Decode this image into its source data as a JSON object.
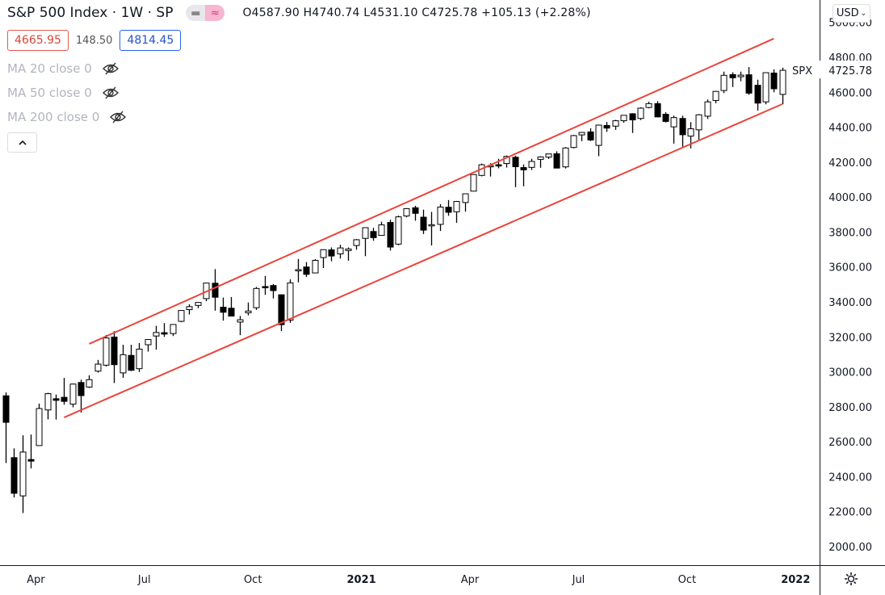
{
  "header": {
    "symbol_title": "S&P 500 Index · 1W · SP",
    "toggle_left_icon": "minus-icon",
    "toggle_right_icon": "approx-icon",
    "ohlc": "O4587.90 H4740.74 L4531.10 C4725.78 +105.13 (+2.28%)",
    "bid": "4665.95",
    "spread": "148.50",
    "ask": "4814.45"
  },
  "indicators": [
    {
      "label": "MA 20 close 0",
      "icon": "eye-off-icon"
    },
    {
      "label": "MA 50 close 0",
      "icon": "eye-off-icon"
    },
    {
      "label": "MA 200 close 0",
      "icon": "eye-off-icon"
    }
  ],
  "collapse_icon": "chevron-up-icon",
  "currency": "USD",
  "price_tag": {
    "symbol": "SPX",
    "value": "4725.78"
  },
  "colors": {
    "channel": "#e8453c",
    "up_fill": "#ffffff",
    "down_fill": "#000000",
    "outline": "#000000",
    "bid": "#d9453a",
    "ask": "#2453c7"
  },
  "chart_data": {
    "type": "candlestick",
    "interval": "1W",
    "ylim": [
      1900,
      5050
    ],
    "y_ticks": [
      2000,
      2200,
      2400,
      2600,
      2800,
      3000,
      3200,
      3400,
      3600,
      3800,
      4000,
      4200,
      4400,
      4600,
      4800,
      5000
    ],
    "y_tick_labels": [
      "2000.00",
      "2200.00",
      "2400.00",
      "2600.00",
      "2800.00",
      "3000.00",
      "3200.00",
      "3400.00",
      "3600.00",
      "3800.00",
      "4000.00",
      "4200.00",
      "4400.00",
      "4600.00",
      "4800.00",
      "5000.00"
    ],
    "x_ticks": [
      {
        "label": "Apr",
        "date": "2020-04-01",
        "bold": false
      },
      {
        "label": "Jul",
        "date": "2020-07-01",
        "bold": false
      },
      {
        "label": "Oct",
        "date": "2020-10-01",
        "bold": false
      },
      {
        "label": "2021",
        "date": "2021-01-01",
        "bold": true
      },
      {
        "label": "Apr",
        "date": "2021-04-01",
        "bold": false
      },
      {
        "label": "Jul",
        "date": "2021-07-01",
        "bold": false
      },
      {
        "label": "Oct",
        "date": "2021-10-01",
        "bold": false
      },
      {
        "label": "2022",
        "date": "2022-01-01",
        "bold": true
      }
    ],
    "channel": [
      {
        "from": [
          "2020-05-18",
          3160
        ],
        "to": [
          "2021-12-13",
          4907
        ]
      },
      {
        "from": [
          "2020-04-27",
          2739
        ],
        "to": [
          "2021-12-20",
          4532
        ]
      }
    ],
    "candles": [
      [
        "2020-03-09",
        2863,
        2882,
        2478,
        2711
      ],
      [
        "2020-03-16",
        2509,
        2562,
        2281,
        2305
      ],
      [
        "2020-03-23",
        2290,
        2637,
        2192,
        2541
      ],
      [
        "2020-03-30",
        2498,
        2641,
        2447,
        2489
      ],
      [
        "2020-04-06",
        2578,
        2818,
        2578,
        2790
      ],
      [
        "2020-04-13",
        2782,
        2880,
        2728,
        2875
      ],
      [
        "2020-04-20",
        2846,
        2870,
        2727,
        2837
      ],
      [
        "2020-04-27",
        2854,
        2965,
        2812,
        2831
      ],
      [
        "2020-05-04",
        2815,
        2933,
        2797,
        2930
      ],
      [
        "2020-05-11",
        2939,
        2955,
        2767,
        2864
      ],
      [
        "2020-05-18",
        2913,
        2980,
        2908,
        2955
      ],
      [
        "2020-05-25",
        3004,
        3068,
        2996,
        3044
      ],
      [
        "2020-06-01",
        3038,
        3211,
        3031,
        3194
      ],
      [
        "2020-06-08",
        3199,
        3233,
        2936,
        3041
      ],
      [
        "2020-06-15",
        2994,
        3155,
        2966,
        3098
      ],
      [
        "2020-06-22",
        3094,
        3155,
        3004,
        3009
      ],
      [
        "2020-06-29",
        3018,
        3165,
        2999,
        3130
      ],
      [
        "2020-07-06",
        3155,
        3186,
        3116,
        3185
      ],
      [
        "2020-07-13",
        3205,
        3263,
        3127,
        3225
      ],
      [
        "2020-07-20",
        3224,
        3279,
        3200,
        3216
      ],
      [
        "2020-07-27",
        3219,
        3272,
        3205,
        3271
      ],
      [
        "2020-08-03",
        3289,
        3352,
        3284,
        3351
      ],
      [
        "2020-08-10",
        3356,
        3387,
        3328,
        3373
      ],
      [
        "2020-08-17",
        3380,
        3399,
        3364,
        3397
      ],
      [
        "2020-08-24",
        3419,
        3509,
        3404,
        3508
      ],
      [
        "2020-08-31",
        3507,
        3588,
        3350,
        3427
      ],
      [
        "2020-09-07",
        3370,
        3425,
        3293,
        3341
      ],
      [
        "2020-09-14",
        3364,
        3428,
        3317,
        3319
      ],
      [
        "2020-09-21",
        3285,
        3320,
        3210,
        3298
      ],
      [
        "2020-09-28",
        3338,
        3397,
        3323,
        3348
      ],
      [
        "2020-10-05",
        3367,
        3486,
        3354,
        3477
      ],
      [
        "2020-10-12",
        3488,
        3549,
        3441,
        3484
      ],
      [
        "2020-10-19",
        3494,
        3502,
        3420,
        3465
      ],
      [
        "2020-10-26",
        3441,
        3441,
        3233,
        3270
      ],
      [
        "2020-11-02",
        3296,
        3529,
        3280,
        3509
      ],
      [
        "2020-11-09",
        3584,
        3646,
        3512,
        3585
      ],
      [
        "2020-11-16",
        3600,
        3628,
        3543,
        3558
      ],
      [
        "2020-11-23",
        3566,
        3645,
        3566,
        3638
      ],
      [
        "2020-11-30",
        3654,
        3699,
        3594,
        3699
      ],
      [
        "2020-12-07",
        3698,
        3712,
        3633,
        3663
      ],
      [
        "2020-12-14",
        3675,
        3727,
        3648,
        3709
      ],
      [
        "2020-12-21",
        3694,
        3712,
        3636,
        3703
      ],
      [
        "2020-12-28",
        3723,
        3760,
        3699,
        3756
      ],
      [
        "2021-01-04",
        3764,
        3826,
        3662,
        3825
      ],
      [
        "2021-01-11",
        3803,
        3824,
        3750,
        3768
      ],
      [
        "2021-01-18",
        3781,
        3859,
        3780,
        3841
      ],
      [
        "2021-01-25",
        3855,
        3871,
        3694,
        3714
      ],
      [
        "2021-02-01",
        3731,
        3894,
        3725,
        3887
      ],
      [
        "2021-02-08",
        3892,
        3937,
        3884,
        3934
      ],
      [
        "2021-02-15",
        3939,
        3950,
        3865,
        3907
      ],
      [
        "2021-02-22",
        3885,
        3928,
        3789,
        3811
      ],
      [
        "2021-03-01",
        3842,
        3915,
        3723,
        3842
      ],
      [
        "2021-03-08",
        3844,
        3960,
        3806,
        3943
      ],
      [
        "2021-03-15",
        3942,
        3983,
        3893,
        3913
      ],
      [
        "2021-03-22",
        3916,
        3978,
        3853,
        3975
      ],
      [
        "2021-03-29",
        3969,
        4020,
        3917,
        4019
      ],
      [
        "2021-04-05",
        4034,
        4130,
        4034,
        4129
      ],
      [
        "2021-04-12",
        4124,
        4192,
        4119,
        4185
      ],
      [
        "2021-04-19",
        4180,
        4194,
        4118,
        4180
      ],
      [
        "2021-04-26",
        4185,
        4219,
        4165,
        4181
      ],
      [
        "2021-05-03",
        4192,
        4238,
        4169,
        4233
      ],
      [
        "2021-05-10",
        4228,
        4237,
        4057,
        4174
      ],
      [
        "2021-05-17",
        4169,
        4187,
        4062,
        4156
      ],
      [
        "2021-05-24",
        4170,
        4219,
        4155,
        4204
      ],
      [
        "2021-05-31",
        4216,
        4234,
        4168,
        4230
      ],
      [
        "2021-06-07",
        4229,
        4249,
        4218,
        4247
      ],
      [
        "2021-06-14",
        4248,
        4262,
        4165,
        4166
      ],
      [
        "2021-06-21",
        4173,
        4286,
        4164,
        4281
      ],
      [
        "2021-06-28",
        4284,
        4356,
        4279,
        4352
      ],
      [
        "2021-07-05",
        4356,
        4372,
        4320,
        4370
      ],
      [
        "2021-07-12",
        4373,
        4394,
        4321,
        4327
      ],
      [
        "2021-07-19",
        4296,
        4415,
        4234,
        4412
      ],
      [
        "2021-07-26",
        4410,
        4430,
        4373,
        4395
      ],
      [
        "2021-08-02",
        4406,
        4442,
        4385,
        4437
      ],
      [
        "2021-08-09",
        4437,
        4469,
        4426,
        4468
      ],
      [
        "2021-08-16",
        4477,
        4480,
        4367,
        4442
      ],
      [
        "2021-08-23",
        4450,
        4514,
        4441,
        4509
      ],
      [
        "2021-08-30",
        4513,
        4546,
        4508,
        4535
      ],
      [
        "2021-09-06",
        4535,
        4549,
        4457,
        4459
      ],
      [
        "2021-09-13",
        4474,
        4486,
        4427,
        4433
      ],
      [
        "2021-09-20",
        4402,
        4466,
        4306,
        4455
      ],
      [
        "2021-09-27",
        4450,
        4466,
        4288,
        4357
      ],
      [
        "2021-10-04",
        4349,
        4429,
        4279,
        4391
      ],
      [
        "2021-10-11",
        4385,
        4475,
        4329,
        4471
      ],
      [
        "2021-10-18",
        4463,
        4559,
        4447,
        4545
      ],
      [
        "2021-10-25",
        4553,
        4608,
        4537,
        4605
      ],
      [
        "2021-11-01",
        4610,
        4718,
        4595,
        4697
      ],
      [
        "2021-11-08",
        4701,
        4714,
        4630,
        4683
      ],
      [
        "2021-11-15",
        4689,
        4718,
        4663,
        4698
      ],
      [
        "2021-11-22",
        4700,
        4744,
        4585,
        4595
      ],
      [
        "2021-11-29",
        4640,
        4672,
        4495,
        4538
      ],
      [
        "2021-12-06",
        4545,
        4714,
        4531,
        4712
      ],
      [
        "2021-12-13",
        4710,
        4731,
        4600,
        4620
      ],
      [
        "2021-12-20",
        4587.9,
        4740.74,
        4531.1,
        4725.78
      ]
    ]
  }
}
